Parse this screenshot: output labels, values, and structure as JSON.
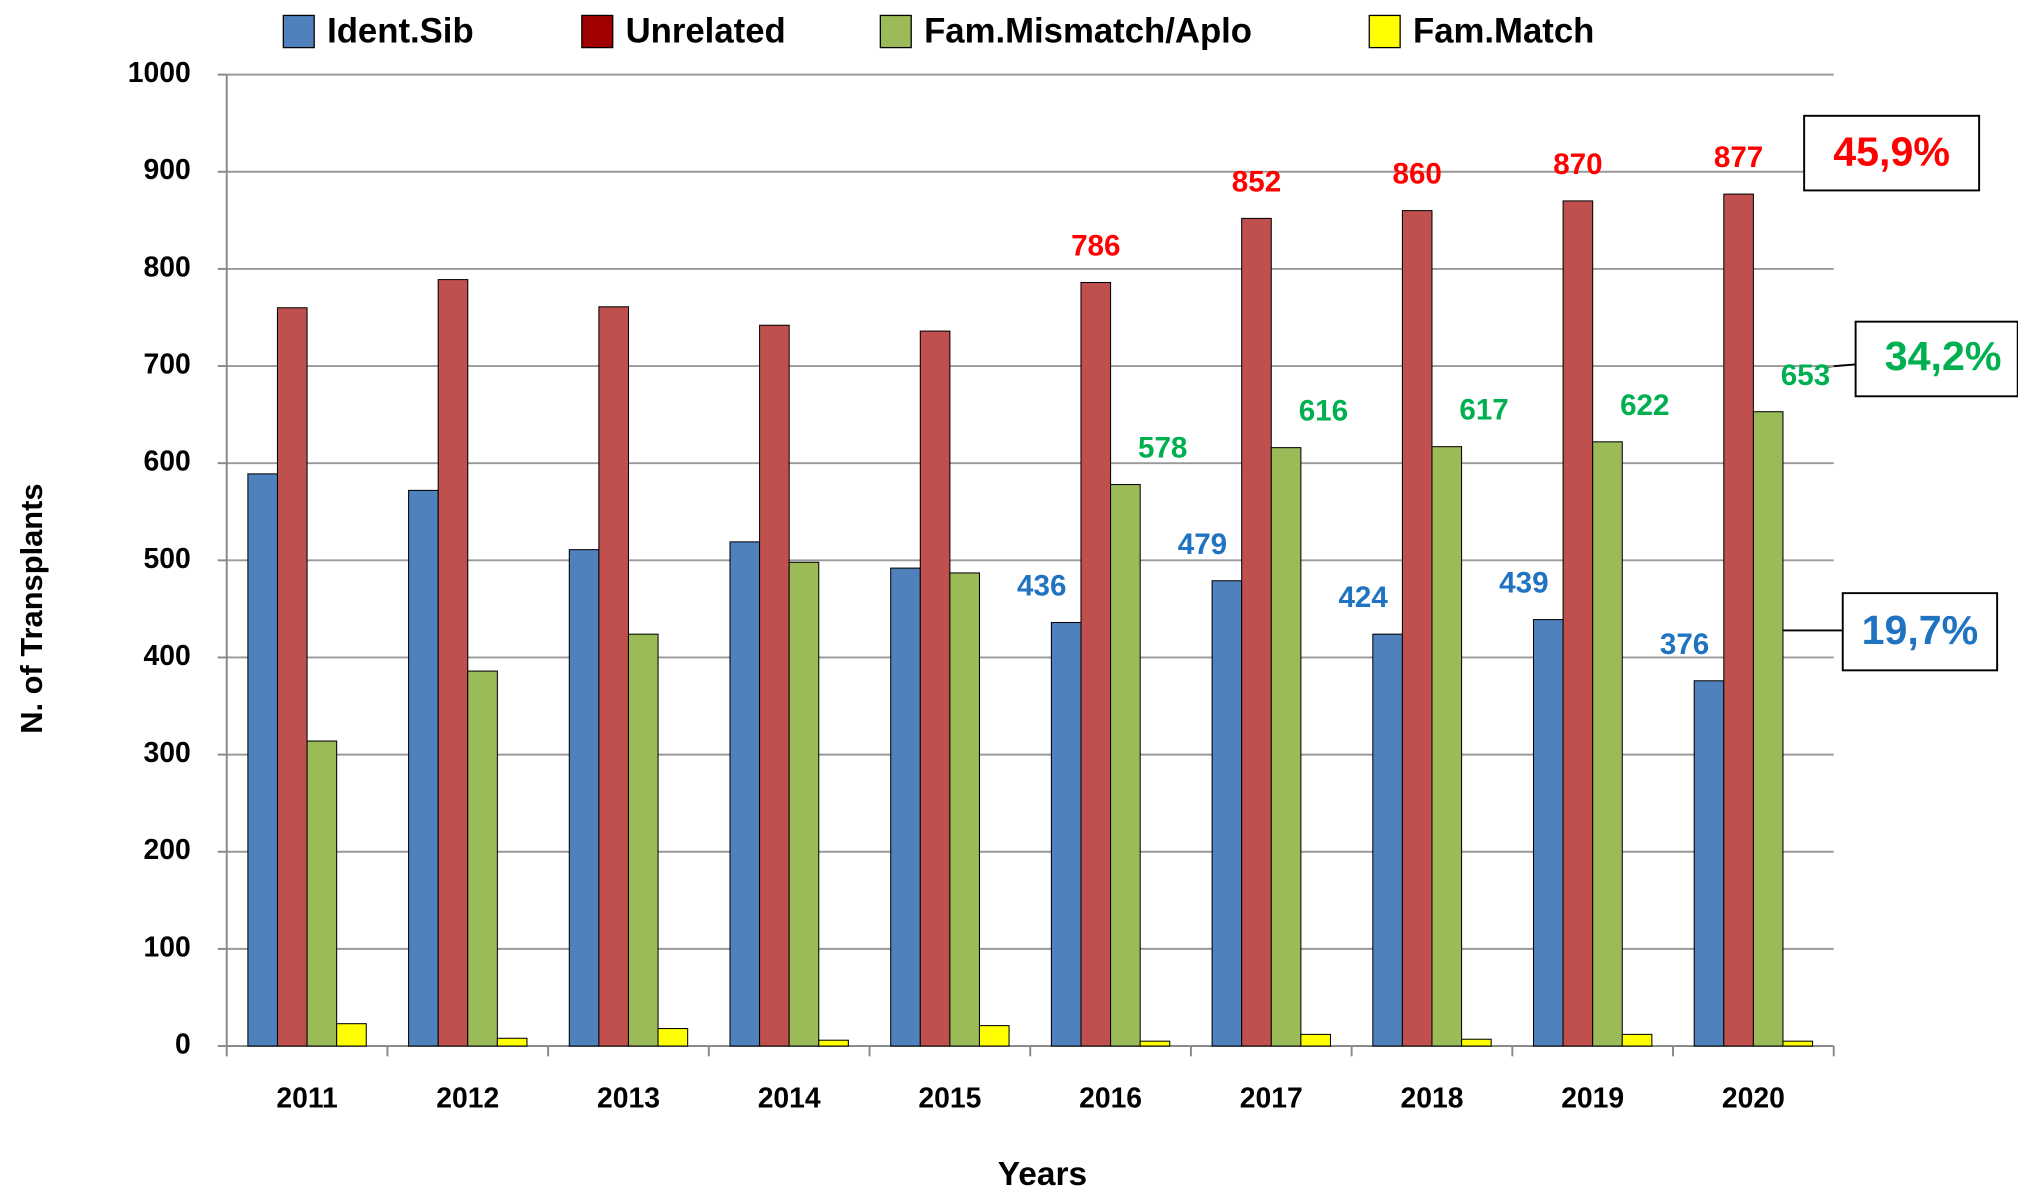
{
  "chart_data": {
    "type": "bar",
    "x_label": "Years",
    "y_label": "N. of  Transplants",
    "categories": [
      "2011",
      "2012",
      "2013",
      "2014",
      "2015",
      "2016",
      "2017",
      "2018",
      "2019",
      "2020"
    ],
    "series": [
      {
        "name": "Ident.Sib",
        "color": "#4f81bd",
        "label_color": "#1f73c0",
        "values": [
          589,
          572,
          511,
          519,
          492,
          436,
          479,
          424,
          439,
          376
        ],
        "value_labels": [
          null,
          null,
          null,
          null,
          null,
          "436",
          "479",
          "424",
          "439",
          "376"
        ]
      },
      {
        "name": "Unrelated",
        "color": "#c0504d",
        "legend_color": "#a00000",
        "label_color": "#ff0000",
        "values": [
          760,
          789,
          761,
          742,
          736,
          786,
          852,
          860,
          870,
          877
        ],
        "value_labels": [
          null,
          null,
          null,
          null,
          null,
          "786",
          "852",
          "860",
          "870",
          "877"
        ]
      },
      {
        "name": "Fam.Mismatch/Aplo",
        "color": "#9bbb59",
        "label_color": "#00b050",
        "values": [
          314,
          386,
          424,
          498,
          487,
          578,
          616,
          617,
          622,
          653
        ],
        "value_labels": [
          null,
          null,
          null,
          null,
          null,
          "578",
          "616",
          "617",
          "622",
          "653"
        ]
      },
      {
        "name": "Fam.Match",
        "color": "#ffff00",
        "values": [
          23,
          8,
          18,
          6,
          21,
          5,
          12,
          7,
          12,
          5
        ]
      }
    ],
    "ylim": [
      0,
      1000
    ],
    "yticks": [
      0,
      100,
      200,
      300,
      400,
      500,
      600,
      700,
      800,
      900,
      1000
    ],
    "grid": true,
    "legend": "top",
    "annotations": [
      {
        "text": "45,9%",
        "color": "#ff0000"
      },
      {
        "text": "34,2%",
        "color": "#00b050"
      },
      {
        "text": "19,7%",
        "color": "#1f73c0"
      }
    ]
  }
}
